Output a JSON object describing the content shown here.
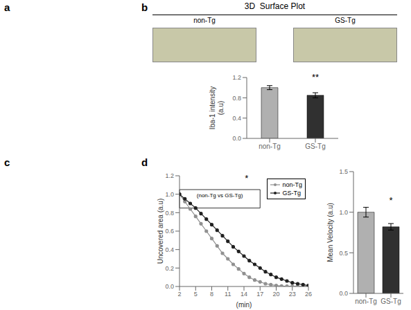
{
  "chart_data": [
    {
      "type": "placeholder",
      "annotations": [
        {
          "text": "a"
        }
      ]
    },
    {
      "type": "image_placeholder",
      "title": "3D  Surface Plot",
      "categories": [
        "non-Tg",
        "GS-Tg"
      ],
      "color": "#c8c8a8",
      "annotations": [
        {
          "text": "b"
        }
      ]
    },
    {
      "type": "bar",
      "categories": [
        "non-Tg",
        "GS-Tg"
      ],
      "values": [
        1.0,
        0.85
      ],
      "errors": [
        0.04,
        0.05
      ],
      "colors": [
        "#b0b0b0",
        "#303030"
      ],
      "ylabel": "Iba-1 intensity\n(a.u)",
      "ylim": [
        0.0,
        1.2
      ],
      "yticks": [
        {
          "value": 0,
          "label": "0.0"
        },
        0.2,
        0.4,
        0.6,
        0.8,
        {
          "value": 1,
          "label": "1.0"
        },
        1.2
      ],
      "annotations": [
        {
          "text": "**",
          "x": "GS-Tg",
          "y": 1.1
        }
      ]
    },
    {
      "type": "placeholder",
      "annotations": [
        {
          "text": "c"
        }
      ]
    },
    {
      "type": "line",
      "xlabel": "(min)",
      "ylabel": "Uncovered area (a.u)",
      "xlim": [
        2,
        26
      ],
      "xticks": [
        2,
        5,
        8,
        11,
        14,
        17,
        20,
        23,
        26
      ],
      "ylim": [
        0,
        1.2
      ],
      "yticks": [
        {
          "value": 0,
          "label": "0.0"
        },
        0.2,
        0.4,
        0.6,
        0.8,
        {
          "value": 1,
          "label": "1.0"
        },
        1.2
      ],
      "marker": "circle",
      "legend": "upper right",
      "x": [
        2,
        3,
        4,
        5,
        6,
        7,
        8,
        9,
        10,
        11,
        12,
        13,
        14,
        15,
        16,
        17,
        18,
        19,
        20,
        21,
        22,
        23,
        24,
        25,
        26
      ],
      "series": [
        {
          "name": "non-Tg",
          "color": "#909090",
          "values": [
            1.0,
            0.92,
            0.84,
            0.76,
            0.68,
            0.6,
            0.52,
            0.44,
            0.36,
            0.3,
            0.24,
            0.19,
            0.14,
            0.1,
            0.07,
            0.05,
            0.03,
            0.02,
            0.01,
            0.005,
            0.003,
            0.002,
            0.001,
            0.001,
            0.001
          ]
        },
        {
          "name": "GS-Tg",
          "color": "#202020",
          "values": [
            1.0,
            0.95,
            0.9,
            0.85,
            0.79,
            0.73,
            0.67,
            0.61,
            0.55,
            0.49,
            0.43,
            0.38,
            0.33,
            0.28,
            0.24,
            0.2,
            0.16,
            0.13,
            0.1,
            0.08,
            0.06,
            0.04,
            0.03,
            0.02,
            0.01
          ]
        }
      ],
      "annotations": [
        {
          "text": "d"
        },
        {
          "text": "*",
          "x": 14.5,
          "y": 1.13
        },
        {
          "text": "(non-Tg vs GS-Tg)",
          "x1": 2,
          "x2": 17,
          "y1": 0.85,
          "y2": 1.05
        }
      ]
    },
    {
      "type": "bar",
      "categories": [
        "non-Tg",
        "GS-Tg"
      ],
      "values": [
        1.0,
        0.82
      ],
      "errors": [
        0.06,
        0.04
      ],
      "colors": [
        "#b0b0b0",
        "#303030"
      ],
      "ylabel": "Mean Velocity (a.u)",
      "ylim": [
        0,
        1.5
      ],
      "yticks": [
        {
          "value": 0,
          "label": "0.0"
        },
        0.5,
        {
          "value": 1,
          "label": "1.0"
        },
        1.5
      ],
      "annotations": [
        {
          "text": "*",
          "x": "GS-Tg",
          "y": 1.08
        }
      ]
    }
  ]
}
